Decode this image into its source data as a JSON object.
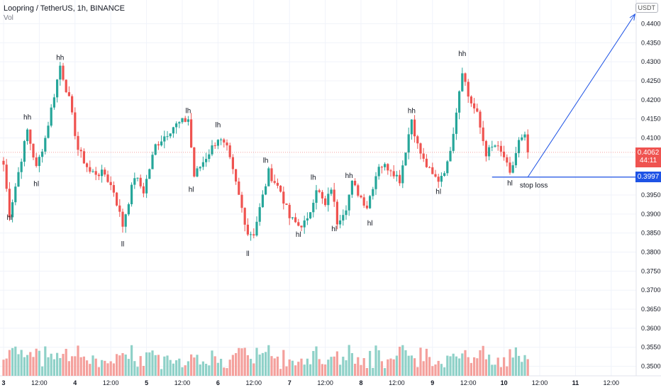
{
  "header": {
    "title": "Loopring / TetherUS, 1h, BINANCE",
    "volume_label": "Vol"
  },
  "currency_badge": "USDT",
  "current_price": {
    "price": "0.4062",
    "countdown": "44:11"
  },
  "stop_loss_price": "0.3997",
  "colors": {
    "up": "#26a69a",
    "down": "#ef5350",
    "up_vol": "#8fd1c8",
    "down_vol": "#f4a09c",
    "annotation": "#1e53e5",
    "grid": "#f0f3fa",
    "axis_text": "#131722"
  },
  "chart_data": {
    "type": "candlestick",
    "symbol": "Loopring / TetherUS",
    "interval": "1h",
    "exchange": "BINANCE",
    "y_range": [
      0.3475,
      0.4425
    ],
    "y_ticks": [
      "0.4400",
      "0.4350",
      "0.4300",
      "0.4250",
      "0.4200",
      "0.4150",
      "0.4100",
      "0.4050",
      "0.4000",
      "0.3950",
      "0.3900",
      "0.3850",
      "0.3800",
      "0.3750",
      "0.3700",
      "0.3650",
      "0.3600",
      "0.3550",
      "0.3500"
    ],
    "x_ticks": [
      {
        "label": "3",
        "bar": 0
      },
      {
        "label": "12:00",
        "bar": 12
      },
      {
        "label": "4",
        "bar": 24
      },
      {
        "label": "12:00",
        "bar": 36
      },
      {
        "label": "5",
        "bar": 48
      },
      {
        "label": "12:00",
        "bar": 60
      },
      {
        "label": "6",
        "bar": 72
      },
      {
        "label": "12:00",
        "bar": 84
      },
      {
        "label": "7",
        "bar": 96
      },
      {
        "label": "12:00",
        "bar": 108
      },
      {
        "label": "8",
        "bar": 120
      },
      {
        "label": "12:00",
        "bar": 132
      },
      {
        "label": "9",
        "bar": 144
      },
      {
        "label": "12:00",
        "bar": 156
      },
      {
        "label": "10",
        "bar": 168
      },
      {
        "label": "12:00",
        "bar": 180
      },
      {
        "label": "11",
        "bar": 192
      },
      {
        "label": "12:00",
        "bar": 204
      }
    ],
    "pivots": [
      {
        "price": 0.403,
        "bar": 0
      },
      {
        "price": 0.39,
        "bar": 2
      },
      {
        "price": 0.412,
        "bar": 8
      },
      {
        "price": 0.402,
        "bar": 11
      },
      {
        "price": 0.41,
        "bar": 14
      },
      {
        "price": 0.429,
        "bar": 19
      },
      {
        "price": 0.42,
        "bar": 22
      },
      {
        "price": 0.407,
        "bar": 25
      },
      {
        "price": 0.401,
        "bar": 29
      },
      {
        "price": 0.4005,
        "bar": 34
      },
      {
        "price": 0.396,
        "bar": 37
      },
      {
        "price": 0.387,
        "bar": 40
      },
      {
        "price": 0.4,
        "bar": 44
      },
      {
        "price": 0.396,
        "bar": 47
      },
      {
        "price": 0.408,
        "bar": 51
      },
      {
        "price": 0.413,
        "bar": 57
      },
      {
        "price": 0.415,
        "bar": 62
      },
      {
        "price": 0.4,
        "bar": 64
      },
      {
        "price": 0.41,
        "bar": 72
      },
      {
        "price": 0.407,
        "bar": 75
      },
      {
        "price": 0.398,
        "bar": 78
      },
      {
        "price": 0.385,
        "bar": 82
      },
      {
        "price": 0.385,
        "bar": 84
      },
      {
        "price": 0.401,
        "bar": 89
      },
      {
        "price": 0.396,
        "bar": 93
      },
      {
        "price": 0.389,
        "bar": 96
      },
      {
        "price": 0.387,
        "bar": 99
      },
      {
        "price": 0.388,
        "bar": 102
      },
      {
        "price": 0.397,
        "bar": 105
      },
      {
        "price": 0.392,
        "bar": 108
      },
      {
        "price": 0.397,
        "bar": 110
      },
      {
        "price": 0.388,
        "bar": 112
      },
      {
        "price": 0.392,
        "bar": 115
      },
      {
        "price": 0.398,
        "bar": 117
      },
      {
        "price": 0.392,
        "bar": 122
      },
      {
        "price": 0.403,
        "bar": 126
      },
      {
        "price": 0.402,
        "bar": 130
      },
      {
        "price": 0.399,
        "bar": 133
      },
      {
        "price": 0.415,
        "bar": 137
      },
      {
        "price": 0.408,
        "bar": 139
      },
      {
        "price": 0.404,
        "bar": 141
      },
      {
        "price": 0.4,
        "bar": 144
      },
      {
        "price": 0.399,
        "bar": 146
      },
      {
        "price": 0.403,
        "bar": 149
      },
      {
        "price": 0.412,
        "bar": 151
      },
      {
        "price": 0.428,
        "bar": 154
      },
      {
        "price": 0.421,
        "bar": 156
      },
      {
        "price": 0.416,
        "bar": 159
      },
      {
        "price": 0.406,
        "bar": 162
      },
      {
        "price": 0.408,
        "bar": 165
      },
      {
        "price": 0.405,
        "bar": 168
      },
      {
        "price": 0.4,
        "bar": 170
      },
      {
        "price": 0.409,
        "bar": 173
      },
      {
        "price": 0.41,
        "bar": 175
      },
      {
        "price": 0.4062,
        "bar": 176
      }
    ],
    "volume_range": [
      0,
      1
    ],
    "annotations": {
      "labels": [
        {
          "text": "hl",
          "bar": 2,
          "price": 0.3885
        },
        {
          "text": "hh",
          "bar": 8,
          "price": 0.4148
        },
        {
          "text": "hl",
          "bar": 11,
          "price": 0.3973
        },
        {
          "text": "hh",
          "bar": 19,
          "price": 0.4305
        },
        {
          "text": "ll",
          "bar": 40,
          "price": 0.3815
        },
        {
          "text": "hl",
          "bar": 63,
          "price": 0.3958
        },
        {
          "text": "lh",
          "bar": 62,
          "price": 0.4165
        },
        {
          "text": "lh",
          "bar": 72,
          "price": 0.4128
        },
        {
          "text": "lh",
          "bar": 88,
          "price": 0.4035
        },
        {
          "text": "ll",
          "bar": 82,
          "price": 0.379
        },
        {
          "text": "hl",
          "bar": 99,
          "price": 0.384
        },
        {
          "text": "lh",
          "bar": 104,
          "price": 0.399
        },
        {
          "text": "hl",
          "bar": 111,
          "price": 0.3855
        },
        {
          "text": "hh",
          "bar": 116,
          "price": 0.3995
        },
        {
          "text": "hl",
          "bar": 123,
          "price": 0.387
        },
        {
          "text": "hh",
          "bar": 137,
          "price": 0.4165
        },
        {
          "text": "hl",
          "bar": 146,
          "price": 0.3953
        },
        {
          "text": "hh",
          "bar": 154,
          "price": 0.4315
        },
        {
          "text": "hl",
          "bar": 170,
          "price": 0.3975
        },
        {
          "text": "stop loss",
          "bar": 178,
          "price": 0.397
        }
      ],
      "target_arrow": {
        "from": {
          "bar": 176,
          "price": 0.3997
        },
        "to": {
          "bar": 212,
          "price": 0.4425
        }
      },
      "stop_loss_line": {
        "price": 0.3997,
        "from_bar": 164
      }
    }
  }
}
